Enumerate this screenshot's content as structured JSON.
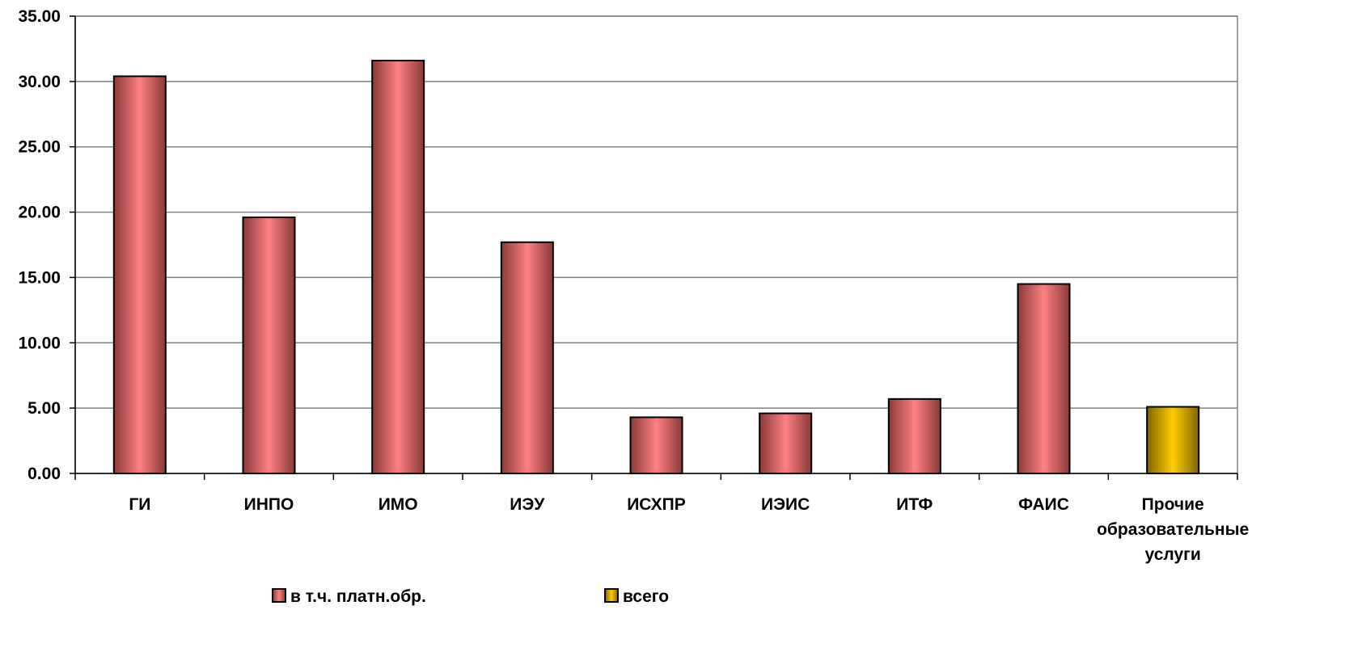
{
  "chart_data": {
    "type": "bar",
    "categories": [
      [
        "ГИ"
      ],
      [
        "ИНПО"
      ],
      [
        "ИМО"
      ],
      [
        "ИЭУ"
      ],
      [
        "ИСХПР"
      ],
      [
        "ИЭИС"
      ],
      [
        "ИТФ"
      ],
      [
        "ФАИС"
      ],
      [
        "Прочие",
        "образовательные",
        "услуги"
      ]
    ],
    "values": [
      30.4,
      19.6,
      31.6,
      17.7,
      4.3,
      4.6,
      5.7,
      14.5,
      5.1
    ],
    "bar_series": [
      0,
      0,
      0,
      0,
      0,
      0,
      0,
      0,
      1
    ],
    "series": [
      {
        "name": "в т.ч. платн.обр.",
        "color": "#ff8080",
        "shade": "#8a3a3a"
      },
      {
        "name": "всего",
        "color": "#ffcc00",
        "shade": "#806600"
      }
    ],
    "ylim": [
      0,
      35
    ],
    "yticks": [
      "0.00",
      "5.00",
      "10.00",
      "15.00",
      "20.00",
      "25.00",
      "30.00",
      "35.00"
    ],
    "ytick_values": [
      0,
      5,
      10,
      15,
      20,
      25,
      30,
      35
    ],
    "grid": true,
    "legend_position": "bottom",
    "title": "",
    "xlabel": "",
    "ylabel": ""
  }
}
